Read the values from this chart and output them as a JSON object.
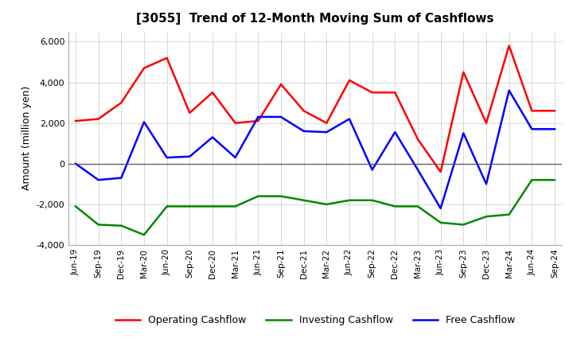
{
  "title": "[3055]  Trend of 12-Month Moving Sum of Cashflows",
  "ylabel": "Amount (million yen)",
  "background_color": "#ffffff",
  "grid_color": "#999999",
  "x_labels": [
    "Jun-19",
    "Sep-19",
    "Dec-19",
    "Mar-20",
    "Jun-20",
    "Sep-20",
    "Dec-20",
    "Mar-21",
    "Jun-21",
    "Sep-21",
    "Dec-21",
    "Mar-22",
    "Jun-22",
    "Sep-22",
    "Dec-22",
    "Mar-23",
    "Jun-23",
    "Sep-23",
    "Dec-23",
    "Mar-24",
    "Jun-24",
    "Sep-24"
  ],
  "operating_cashflow": [
    2100,
    2200,
    3000,
    4700,
    5200,
    2500,
    3500,
    2000,
    2100,
    3900,
    2600,
    2000,
    4100,
    3500,
    3500,
    1200,
    -400,
    4500,
    2000,
    5800,
    2600,
    2600
  ],
  "investing_cashflow": [
    -2100,
    -3000,
    -3050,
    -3500,
    -2100,
    -2100,
    -2100,
    -2100,
    -1600,
    -1600,
    -1800,
    -2000,
    -1800,
    -1800,
    -2100,
    -2100,
    -2900,
    -3000,
    -2600,
    -2500,
    -800,
    -800
  ],
  "free_cashflow": [
    0,
    -800,
    -700,
    2050,
    300,
    350,
    1300,
    300,
    2300,
    2300,
    1600,
    1550,
    2200,
    -300,
    1550,
    -300,
    -2200,
    1500,
    -1000,
    3600,
    1700,
    1700
  ],
  "operating_color": "#ff0000",
  "investing_color": "#008800",
  "free_color": "#0000ff",
  "ylim": [
    -4000,
    6500
  ],
  "yticks": [
    -4000,
    -2000,
    0,
    2000,
    4000,
    6000
  ],
  "legend_labels": [
    "Operating Cashflow",
    "Investing Cashflow",
    "Free Cashflow"
  ]
}
